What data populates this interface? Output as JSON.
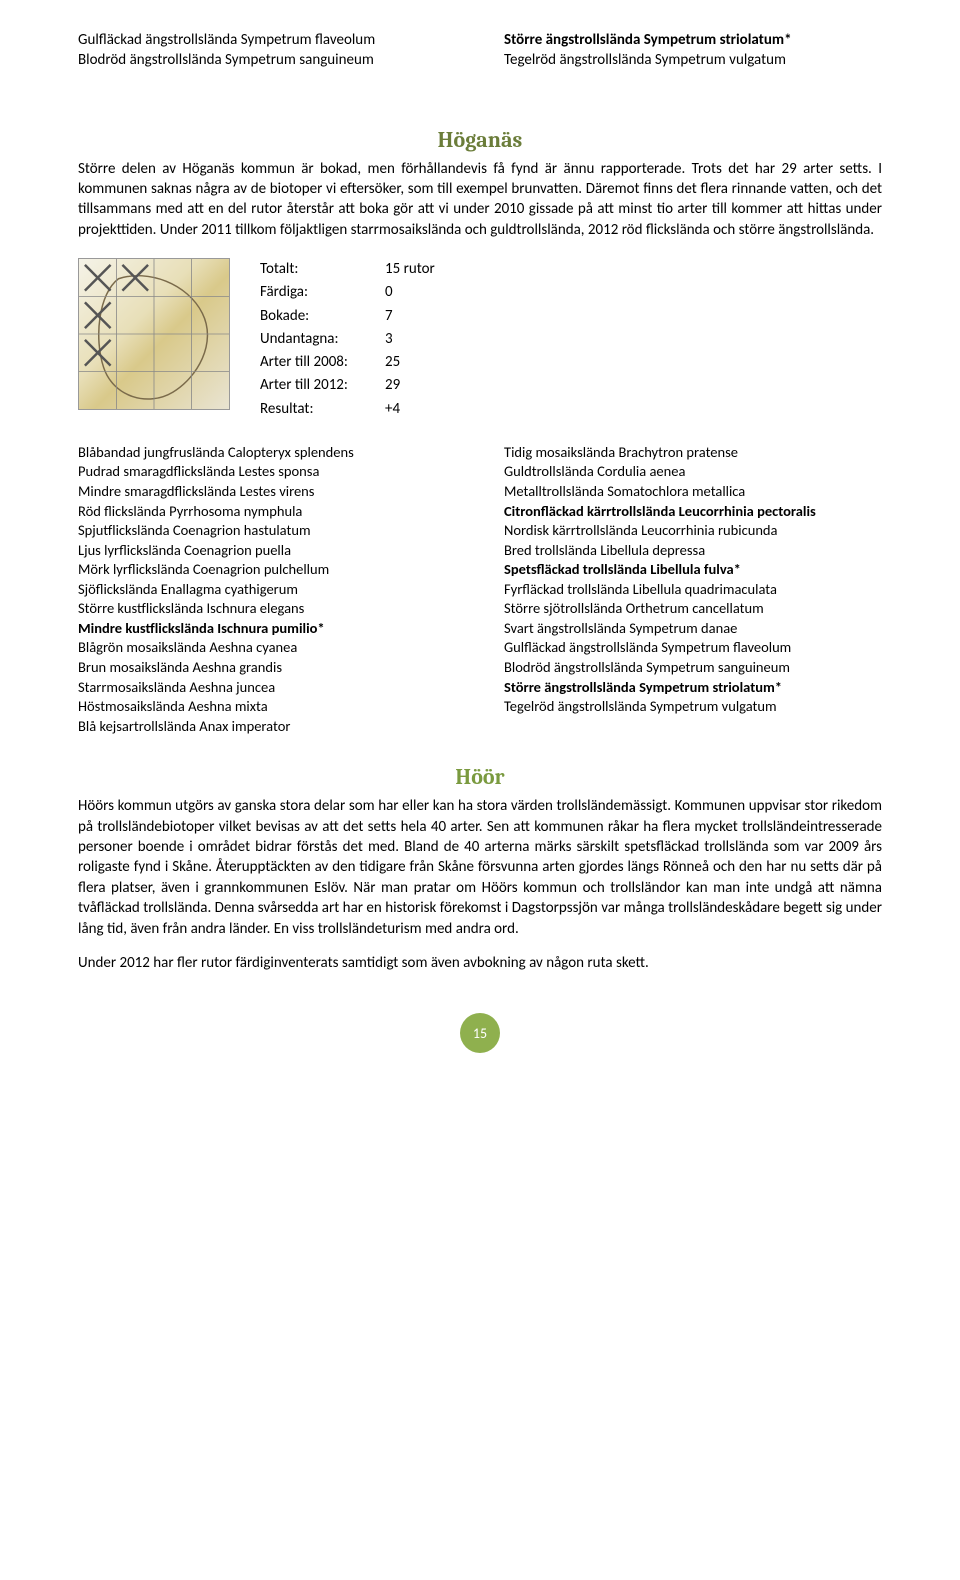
{
  "top_left": [
    {
      "t": "Gulfläckad ängstrollslända Sympetrum flaveolum",
      "b": false
    },
    {
      "t": "Blodröd ängstrollslända Sympetrum sanguineum",
      "b": false
    }
  ],
  "top_right": [
    {
      "t": "Större ängstrollslända Sympetrum striolatum*",
      "b": true
    },
    {
      "t": "Tegelröd ängstrollslända Sympetrum vulgatum",
      "b": false
    }
  ],
  "hoganas": {
    "title": "Höganäs",
    "para": "Större delen av Höganäs kommun är bokad, men förhållandevis få fynd är ännu rapporterade. Trots det har 29 arter setts. I kommunen saknas några av de biotoper vi eftersöker, som till exempel brunvatten. Däremot finns det flera rinnande vatten, och det tillsammans med att en del rutor återstår att boka gör att vi under 2010 gissade på att minst tio arter till kommer att hittas under projekttiden. Under 2011 tillkom följaktligen starrmosaikslända och guldtrollslända, 2012 röd flickslända och större ängstrollslända."
  },
  "stats": [
    {
      "label": "Totalt:",
      "value": "15 rutor"
    },
    {
      "label": "Färdiga:",
      "value": "0"
    },
    {
      "label": "Bokade:",
      "value": "7"
    },
    {
      "label": "Undantagna:",
      "value": "3"
    },
    {
      "label": "Arter till 2008:",
      "value": "25"
    },
    {
      "label": "Arter till 2012:",
      "value": "29"
    },
    {
      "label": "Resultat:",
      "value": "+4"
    }
  ],
  "species_left": [
    {
      "t": "Blåbandad jungfruslända Calopteryx splendens",
      "b": false
    },
    {
      "t": "Pudrad smaragdflickslända Lestes sponsa",
      "b": false
    },
    {
      "t": "Mindre smaragdflickslända Lestes virens",
      "b": false
    },
    {
      "t": "Röd flickslända Pyrrhosoma nymphula",
      "b": false
    },
    {
      "t": "Spjutflickslända Coenagrion hastulatum",
      "b": false
    },
    {
      "t": "Ljus lyrflickslända Coenagrion puella",
      "b": false
    },
    {
      "t": "Mörk lyrflickslända Coenagrion pulchellum",
      "b": false
    },
    {
      "t": "Sjöflickslända Enallagma cyathigerum",
      "b": false
    },
    {
      "t": "Större kustflickslända Ischnura elegans",
      "b": false
    },
    {
      "t": "Mindre kustflickslända Ischnura pumilio*",
      "b": true
    },
    {
      "t": "Blågrön mosaikslända Aeshna cyanea",
      "b": false
    },
    {
      "t": "Brun mosaikslända Aeshna grandis",
      "b": false
    },
    {
      "t": "Starrmosaikslända Aeshna juncea",
      "b": false
    },
    {
      "t": "Höstmosaikslända Aeshna mixta",
      "b": false
    },
    {
      "t": "Blå kejsartrollslända Anax imperator",
      "b": false
    }
  ],
  "species_right": [
    {
      "t": "Tidig mosaikslända Brachytron pratense",
      "b": false
    },
    {
      "t": "Guldtrollslända Cordulia aenea",
      "b": false
    },
    {
      "t": "Metalltrollslända Somatochlora metallica",
      "b": false
    },
    {
      "t": "Citronfläckad kärrtrollslända Leucorrhinia pectoralis",
      "b": true
    },
    {
      "t": "Nordisk kärrtrollslända Leucorrhinia rubicunda",
      "b": false
    },
    {
      "t": "Bred trollslända Libellula depressa",
      "b": false
    },
    {
      "t": "Spetsfläckad trollslända Libellula fulva*",
      "b": true
    },
    {
      "t": "Fyrfläckad trollslända Libellula quadrimaculata",
      "b": false
    },
    {
      "t": "Större sjötrollslända Orthetrum cancellatum",
      "b": false
    },
    {
      "t": "Svart ängstrollslända Sympetrum danae",
      "b": false
    },
    {
      "t": "Gulfläckad ängstrollslända Sympetrum flaveolum",
      "b": false
    },
    {
      "t": "Blodröd ängstrollslända Sympetrum sanguineum",
      "b": false
    },
    {
      "t": "Större ängstrollslända Sympetrum striolatum*",
      "b": true
    },
    {
      "t": "Tegelröd ängstrollslända Sympetrum vulgatum",
      "b": false
    }
  ],
  "hoor": {
    "title": "Höör",
    "para1": "Höörs kommun utgörs av ganska stora delar som har eller kan ha stora värden trollsländemässigt. Kommunen uppvisar stor rikedom på trollsländebiotoper vilket bevisas av att det setts hela 40 arter. Sen att kommunen råkar ha flera mycket trollsländeintresserade personer boende i området bidrar förstås det med. Bland de 40 arterna märks särskilt spetsfläckad trollslända som var 2009 års roligaste fynd i Skåne. Återupptäckten av den tidigare från Skåne försvunna arten gjordes längs Rönneå och den har nu setts där på flera platser, även i grannkommunen Eslöv. När man pratar om Höörs kommun och trollsländor kan man inte undgå att nämna tvåfläckad trollslända. Denna svårsedda art har en historisk förekomst i Dagstorpssjön var många trollsländeskådare begett sig under lång tid, även från andra länder. En viss trollsländeturism med andra ord.",
    "para2": "Under 2012 har fler rutor färdiginventerats samtidigt som även avbokning av någon ruta skett."
  },
  "page_number": "15",
  "colors": {
    "title_olive": "#6b7d3a",
    "title_green": "#7a9a3f",
    "badge": "#8fb04e"
  },
  "map": {
    "grid_cells": "4x4",
    "x_marks": [
      [
        0,
        0
      ],
      [
        1,
        0
      ],
      [
        0,
        1
      ],
      [
        0,
        2
      ]
    ],
    "line_color": "#888",
    "x_color": "#555"
  }
}
